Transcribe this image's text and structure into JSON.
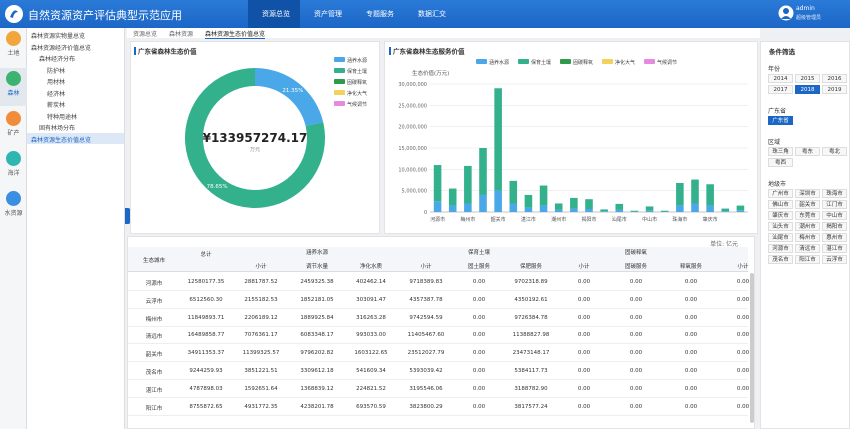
{
  "header": {
    "title": "自然资源资产评估典型示范应用",
    "nav": [
      "资源总览",
      "资产管理",
      "专题服务",
      "数据汇交"
    ],
    "active_nav": 0,
    "user": "admin",
    "role": "超级管理员"
  },
  "sidebar": {
    "items": [
      "土地",
      "森林",
      "矿产",
      "海洋",
      "水资源"
    ],
    "active": 1
  },
  "tree": {
    "items": [
      {
        "label": "森林资源实物量总览",
        "level": 0
      },
      {
        "label": "森林资源经济价值总览",
        "level": 0
      },
      {
        "label": "森林经济分布",
        "level": 1
      },
      {
        "label": "防护林",
        "level": 2
      },
      {
        "label": "用材林",
        "level": 2
      },
      {
        "label": "经济林",
        "level": 2
      },
      {
        "label": "薪炭林",
        "level": 2
      },
      {
        "label": "特种用途林",
        "level": 2
      },
      {
        "label": "固有林场分布",
        "level": 1
      },
      {
        "label": "森林资源生态价值总览",
        "level": 0
      }
    ],
    "selected": 9
  },
  "tabs": {
    "items": [
      "资源总览",
      "森林资源",
      "森林资源生态价值总览"
    ],
    "active": 2
  },
  "chart_data": [
    {
      "type": "pie",
      "title": "广东省森林生态价值",
      "total_label": "¥133957274.17",
      "unit": "万元",
      "categories": [
        "涵养水源",
        "保育土壤",
        "固碳释氧",
        "净化大气",
        "气候调节"
      ],
      "values": [
        21.35,
        78.65,
        0,
        0,
        0
      ],
      "value_labels": [
        "21.35%",
        "78.65%",
        null,
        null,
        null
      ],
      "colors": [
        "#4aa8e8",
        "#33b08c",
        "#2e9a4a",
        "#f2d15c",
        "#e889e0"
      ]
    },
    {
      "type": "bar",
      "stacked": true,
      "title": "广东省森林生态服务价值",
      "y_label": "生态价值(万元)",
      "categories": [
        "河源市",
        null,
        "梅州市",
        null,
        "韶关市",
        null,
        "湛江市",
        null,
        "潮州市",
        null,
        "揭阳市",
        null,
        "汕尾市",
        null,
        "中山市",
        null,
        "珠海市",
        null,
        "肇庆市",
        null,
        null
      ],
      "series": [
        {
          "name": "涵养水源",
          "color": "#4aa8e8",
          "values": [
            2500000,
            1500000,
            2000000,
            4000000,
            5000000,
            2000000,
            1000000,
            1500000,
            500000,
            800000,
            700000,
            200000,
            500000,
            100000,
            300000,
            100000,
            1500000,
            2000000,
            1500000,
            200000,
            400000
          ]
        },
        {
          "name": "保育土壤",
          "color": "#33b08c",
          "values": [
            8500000,
            4000000,
            8800000,
            11000000,
            24000000,
            5300000,
            3000000,
            4700000,
            1500000,
            2500000,
            2300000,
            400000,
            1400000,
            200000,
            1000000,
            200000,
            5300000,
            5600000,
            5000000,
            600000,
            1100000
          ]
        },
        {
          "name": "固碳释氧",
          "color": "#2e9a4a",
          "values": [
            0,
            0,
            0,
            0,
            0,
            0,
            0,
            0,
            0,
            0,
            0,
            0,
            0,
            0,
            0,
            0,
            0,
            0,
            0,
            0,
            0
          ]
        },
        {
          "name": "净化大气",
          "color": "#f2d15c",
          "values": [
            0,
            0,
            0,
            0,
            0,
            0,
            0,
            0,
            0,
            0,
            0,
            0,
            0,
            0,
            0,
            0,
            0,
            0,
            0,
            0,
            0
          ]
        },
        {
          "name": "气候调节",
          "color": "#e889e0",
          "values": [
            0,
            0,
            0,
            0,
            0,
            0,
            0,
            0,
            0,
            0,
            0,
            0,
            0,
            0,
            0,
            0,
            0,
            0,
            0,
            0,
            0
          ]
        }
      ],
      "ylim": [
        0,
        30000000
      ],
      "yticks": [
        0,
        {
          "value": 5000000,
          "label": "5,000,000"
        },
        {
          "value": 10000000,
          "label": "10,000,000"
        },
        {
          "value": 15000000,
          "label": "15,000,000"
        },
        {
          "value": 20000000,
          "label": "20,000,000"
        },
        {
          "value": 25000000,
          "label": "25,000,000"
        },
        {
          "value": 30000000,
          "label": "30,000,000"
        }
      ],
      "grid": true
    }
  ],
  "filter": {
    "title": "条件筛选",
    "groups": [
      {
        "label": "年份",
        "options": [
          "2014",
          "2015",
          "2016",
          "2017",
          "2018",
          "2019"
        ],
        "active": 4
      },
      {
        "label": "广东省",
        "options": [
          "广东省"
        ],
        "active": 0
      },
      {
        "label": "区域",
        "options": [
          "珠三角",
          "粤东",
          "粤北",
          "粤西"
        ],
        "active": null
      },
      {
        "label": "地级市",
        "options": [
          "广州市",
          "深圳市",
          "珠海市",
          "佛山市",
          "韶关市",
          "江门市",
          "肇庆市",
          "东莞市",
          "中山市",
          "汕头市",
          "潮州市",
          "揭阳市",
          "汕尾市",
          "梅州市",
          "惠州市",
          "河源市",
          "清远市",
          "湛江市",
          "茂名市",
          "阳江市",
          "云浮市"
        ],
        "active": null
      }
    ]
  },
  "table": {
    "unit": "单位: 亿元",
    "columns": [
      "生态城市",
      "总计"
    ],
    "groups": [
      {
        "name": "涵养水源",
        "sub": [
          "小计",
          "调节水量",
          "净化水质"
        ]
      },
      {
        "name": "保育土壤",
        "sub": [
          "小计",
          "固土服务",
          "保肥服务"
        ]
      },
      {
        "name": "固碳释氧",
        "sub": [
          "小计",
          "固碳服务",
          "释氧服务"
        ]
      }
    ],
    "extra_column": "小计",
    "rows": [
      [
        "河源市",
        "12580177.35",
        "2881787.52",
        "2459325.38",
        "402462.14",
        "9718389.83",
        "0.00",
        "9702318.89",
        "0.00",
        "0.00",
        "0.00",
        "0.00"
      ],
      [
        "云浮市",
        "6512560.30",
        "2155182.53",
        "1852181.05",
        "303091.47",
        "4357387.78",
        "0.00",
        "4350192.61",
        "0.00",
        "0.00",
        "0.00",
        "0.00"
      ],
      [
        "梅州市",
        "11849893.71",
        "2206189.12",
        "1889925.84",
        "316263.28",
        "9742594.59",
        "0.00",
        "9726384.78",
        "0.00",
        "0.00",
        "0.00",
        "0.00"
      ],
      [
        "清远市",
        "16489858.77",
        "7076361.17",
        "6083348.17",
        "993033.00",
        "11405467.60",
        "0.00",
        "11388827.98",
        "0.00",
        "0.00",
        "0.00",
        "0.00"
      ],
      [
        "韶关市",
        "34911353.37",
        "11399325.57",
        "9796202.82",
        "1603122.65",
        "23512027.79",
        "0.00",
        "23473148.17",
        "0.00",
        "0.00",
        "0.00",
        "0.00"
      ],
      [
        "茂名市",
        "9244259.93",
        "3851221.51",
        "3309612.18",
        "541609.34",
        "5393039.42",
        "0.00",
        "5384117.73",
        "0.00",
        "0.00",
        "0.00",
        "0.00"
      ],
      [
        "湛江市",
        "4787898.03",
        "1592651.64",
        "1368839.12",
        "224821.52",
        "3195546.06",
        "0.00",
        "3188782.90",
        "0.00",
        "0.00",
        "0.00",
        "0.00"
      ],
      [
        "阳江市",
        "8755872.65",
        "4931772.35",
        "4238201.78",
        "693570.59",
        "3823800.29",
        "0.00",
        "3817577.24",
        "0.00",
        "0.00",
        "0.00",
        "0.00"
      ]
    ]
  }
}
